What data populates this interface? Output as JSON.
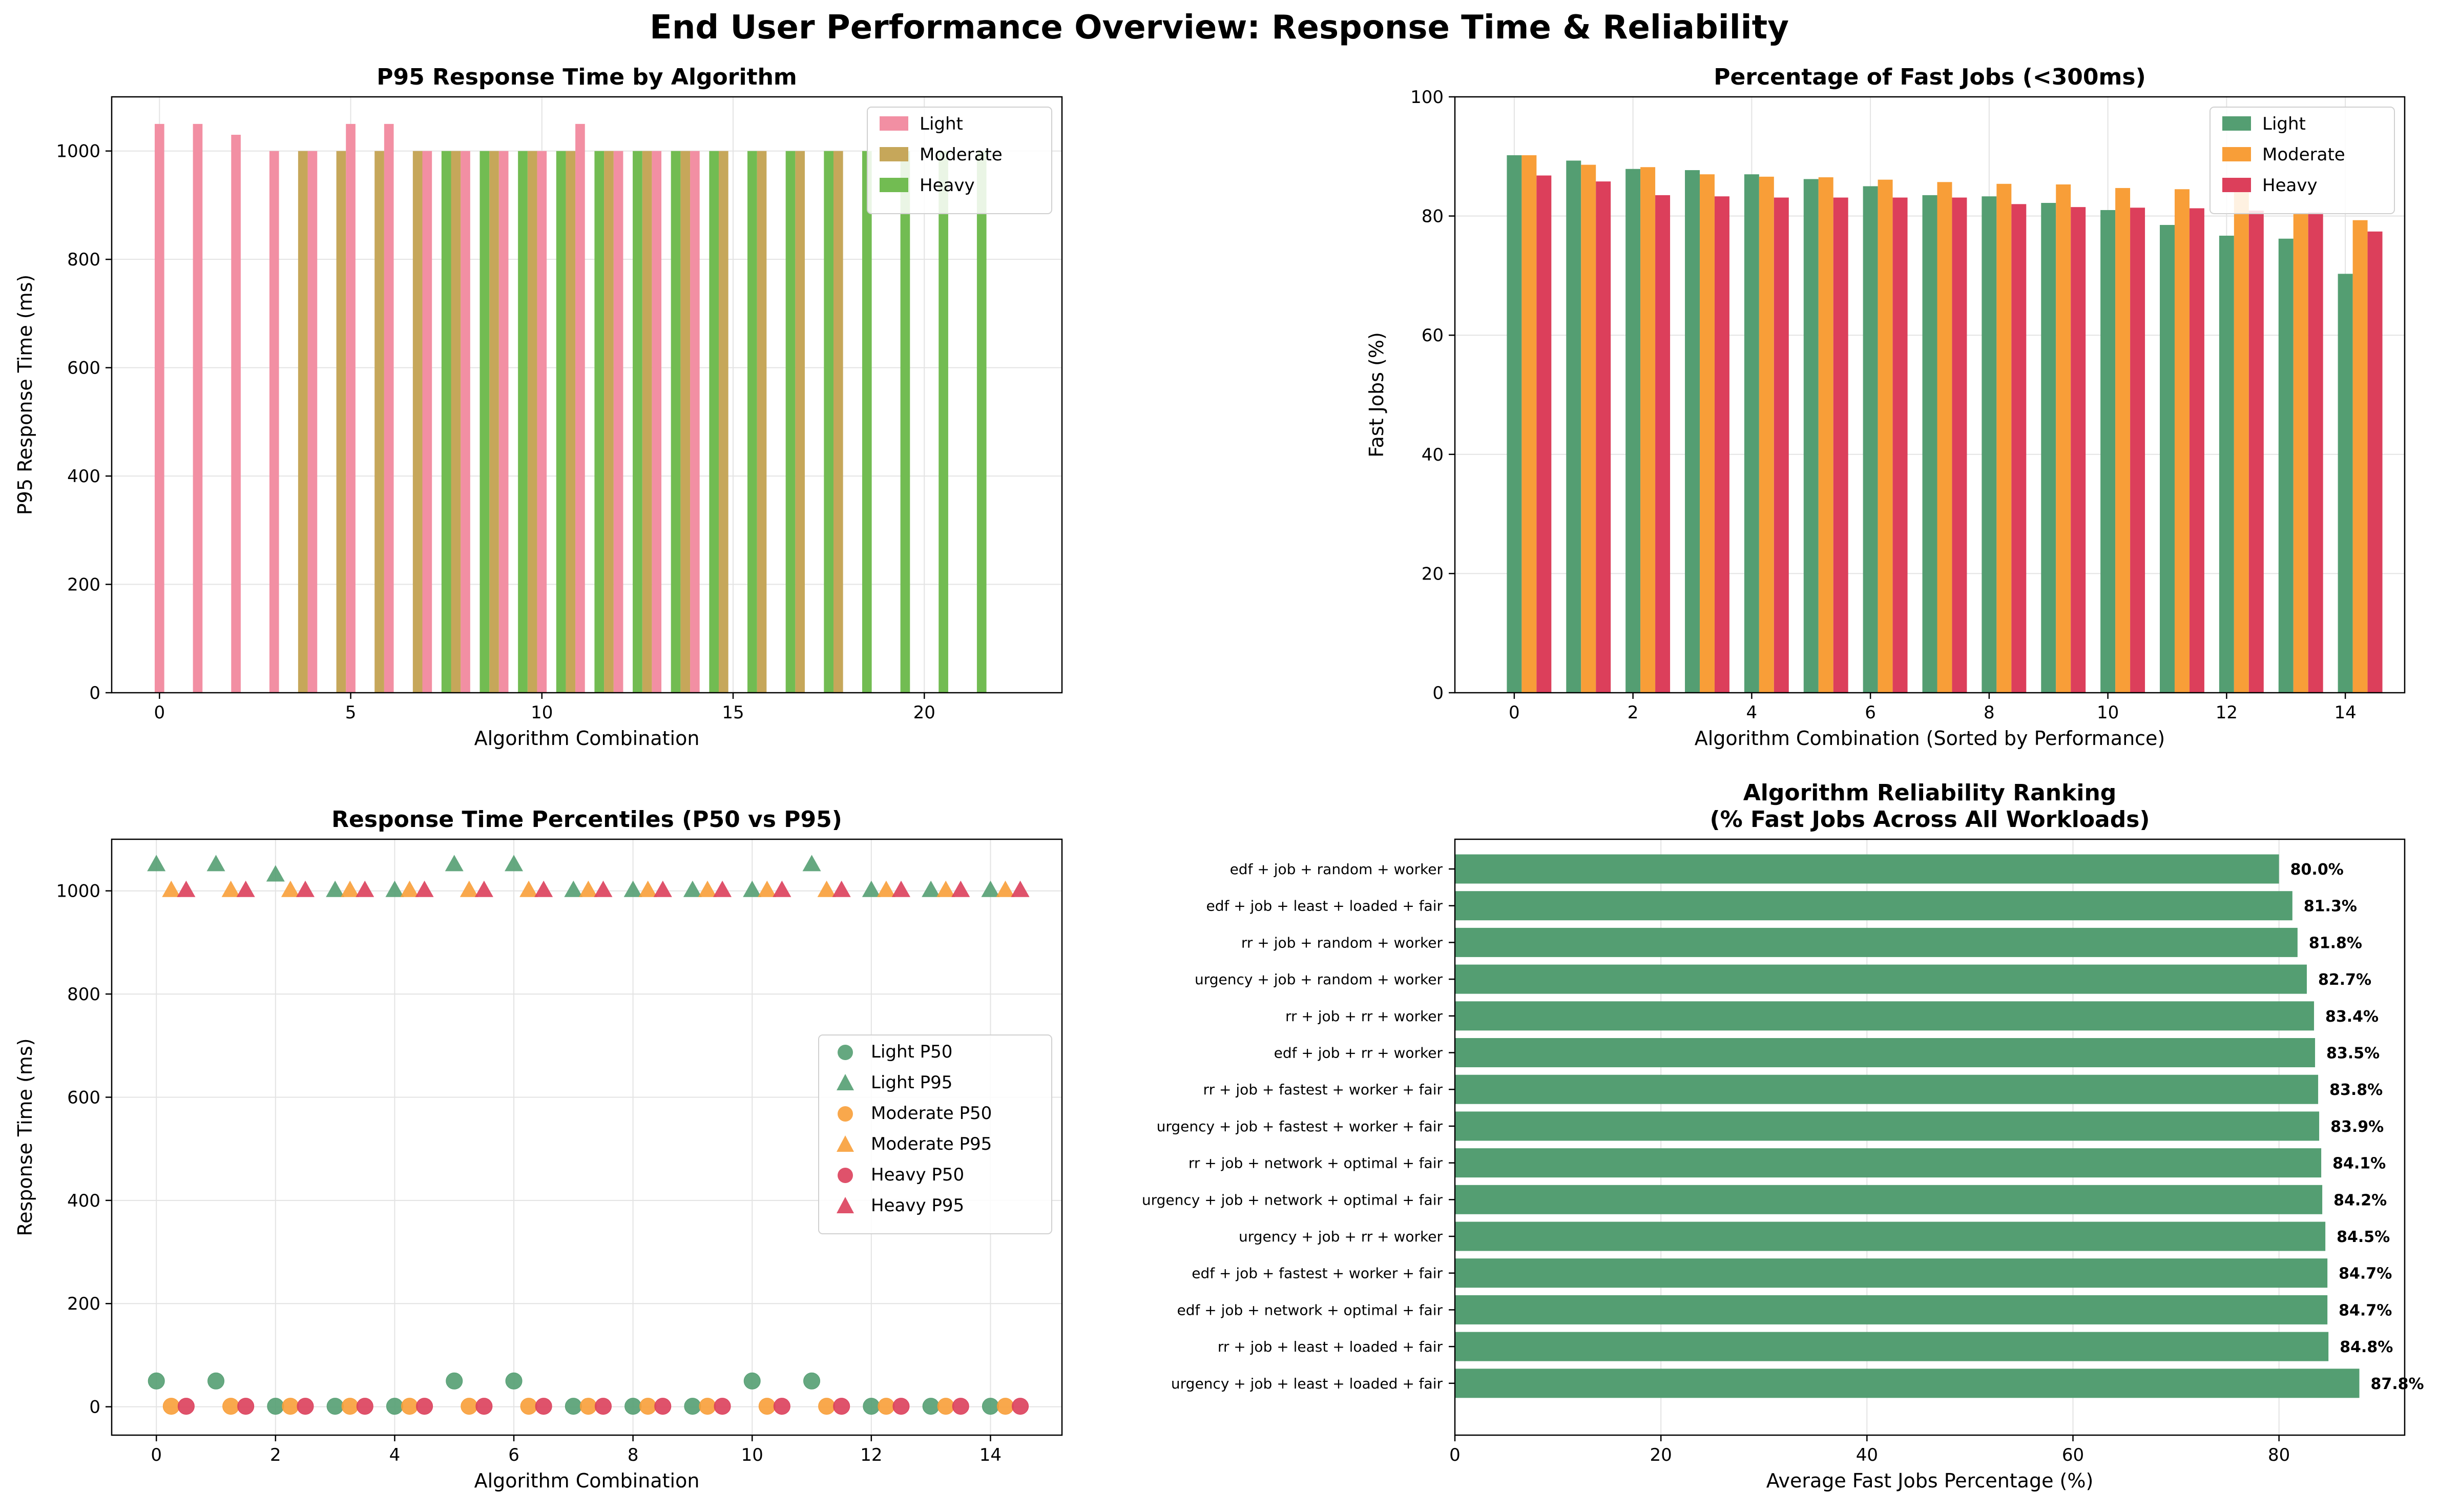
{
  "figure": {
    "title": "End User Performance Overview: Response Time & Reliability"
  },
  "chart_data": [
    {
      "type": "bar",
      "title": "P95 Response Time by Algorithm",
      "xlabel": "Algorithm Combination",
      "ylabel": "P95 Response Time (ms)",
      "xlim": [
        -1.25,
        23.6
      ],
      "ylim": [
        0,
        1100
      ],
      "xticks": [
        0,
        5,
        10,
        15,
        20
      ],
      "yticks": [
        0,
        200,
        400,
        600,
        800,
        1000
      ],
      "grid": true,
      "legend": "top-right",
      "bar_width": 0.25,
      "series": [
        {
          "name": "Light",
          "color": "#f28fa3",
          "x": [
            0,
            1,
            2,
            3,
            4,
            5,
            6,
            7,
            8,
            9,
            10,
            11,
            12,
            13,
            14
          ],
          "values": [
            1050,
            1050,
            1030,
            1000,
            1000,
            1050,
            1050,
            1000,
            1000,
            1000,
            1000,
            1050,
            1000,
            1000,
            1000
          ]
        },
        {
          "name": "Moderate",
          "color": "#c6a75a",
          "x": [
            3.75,
            4.75,
            5.75,
            6.75,
            7.75,
            8.75,
            9.75,
            10.75,
            11.75,
            12.75,
            13.75,
            14.75,
            15.75,
            16.75,
            17.75
          ],
          "values": [
            1000,
            1000,
            1000,
            1000,
            1000,
            1000,
            1000,
            1000,
            1000,
            1000,
            1000,
            1000,
            1000,
            1000,
            1000
          ]
        },
        {
          "name": "Heavy",
          "color": "#72bc52",
          "x": [
            7.5,
            8.5,
            9.5,
            10.5,
            11.5,
            12.5,
            13.5,
            14.5,
            15.5,
            16.5,
            17.5,
            18.5,
            19.5,
            20.5,
            21.5
          ],
          "values": [
            1000,
            1000,
            1000,
            1000,
            1000,
            1000,
            1000,
            1000,
            1000,
            1000,
            1000,
            1000,
            1000,
            1000,
            1000
          ]
        }
      ]
    },
    {
      "type": "bar",
      "title": "Percentage of Fast Jobs (<300ms)",
      "xlabel": "Algorithm Combination (Sorted by Performance)",
      "ylabel": "Fast Jobs (%)",
      "xlim": [
        -1.0,
        15.0
      ],
      "ylim": [
        0,
        100
      ],
      "xticks": [
        0,
        2,
        4,
        6,
        8,
        10,
        12,
        14
      ],
      "yticks": [
        0,
        20,
        40,
        60,
        80,
        100
      ],
      "grid": true,
      "legend": "top-right",
      "categories": [
        0,
        1,
        2,
        3,
        4,
        5,
        6,
        7,
        8,
        9,
        10,
        11,
        12,
        13,
        14
      ],
      "series": [
        {
          "name": "Light",
          "color": "#549e72",
          "values": [
            90.2,
            89.3,
            87.9,
            87.7,
            87.0,
            86.2,
            85.0,
            83.5,
            83.3,
            82.2,
            81.0,
            78.5,
            76.7,
            76.2,
            70.3
          ]
        },
        {
          "name": "Moderate",
          "color": "#f89e38",
          "values": [
            90.2,
            88.6,
            88.2,
            87.0,
            86.6,
            86.5,
            86.1,
            85.7,
            85.4,
            85.3,
            84.7,
            84.5,
            84.0,
            80.5,
            79.3
          ]
        },
        {
          "name": "Heavy",
          "color": "#dc3f5b",
          "values": [
            86.8,
            85.8,
            83.5,
            83.3,
            83.1,
            83.1,
            83.1,
            83.1,
            82.0,
            81.5,
            81.4,
            81.3,
            80.9,
            80.6,
            77.4
          ]
        }
      ]
    },
    {
      "type": "scatter",
      "title": "Response Time Percentiles (P50 vs P95)",
      "xlabel": "Algorithm Combination",
      "ylabel": "Response Time (ms)",
      "xlim": [
        -0.75,
        15.2
      ],
      "ylim": [
        -55,
        1100
      ],
      "xticks": [
        0,
        2,
        4,
        6,
        8,
        10,
        12,
        14
      ],
      "yticks": [
        0,
        200,
        400,
        600,
        800,
        1000
      ],
      "grid": true,
      "legend": "center-right",
      "x": [
        0,
        1,
        2,
        3,
        4,
        5,
        6,
        7,
        8,
        9,
        10,
        11,
        12,
        13,
        14
      ],
      "series": [
        {
          "name": "Light P50",
          "color": "#549e72",
          "marker": "circle",
          "x_offset": 0,
          "values": [
            50,
            50,
            1,
            1,
            1,
            50,
            50,
            1,
            1,
            1,
            50,
            50,
            1,
            1,
            1
          ]
        },
        {
          "name": "Light P95",
          "color": "#549e72",
          "marker": "triangle",
          "x_offset": 0,
          "values": [
            1050,
            1050,
            1030,
            1000,
            1000,
            1050,
            1050,
            1000,
            1000,
            1000,
            1000,
            1050,
            1000,
            1000,
            1000
          ]
        },
        {
          "name": "Moderate P50",
          "color": "#f89e38",
          "marker": "circle",
          "x_offset": 0.25,
          "values": [
            1,
            1,
            1,
            1,
            1,
            1,
            1,
            1,
            1,
            1,
            1,
            1,
            1,
            1,
            1
          ]
        },
        {
          "name": "Moderate P95",
          "color": "#f89e38",
          "marker": "triangle",
          "x_offset": 0.25,
          "values": [
            1000,
            1000,
            1000,
            1000,
            1000,
            1000,
            1000,
            1000,
            1000,
            1000,
            1000,
            1000,
            1000,
            1000,
            1000
          ]
        },
        {
          "name": "Heavy P50",
          "color": "#dc3f5b",
          "marker": "circle",
          "x_offset": 0.5,
          "values": [
            1,
            1,
            1,
            1,
            1,
            1,
            1,
            1,
            1,
            1,
            1,
            1,
            1,
            1,
            1
          ]
        },
        {
          "name": "Heavy P95",
          "color": "#dc3f5b",
          "marker": "triangle",
          "x_offset": 0.5,
          "values": [
            1000,
            1000,
            1000,
            1000,
            1000,
            1000,
            1000,
            1000,
            1000,
            1000,
            1000,
            1000,
            1000,
            1000,
            1000
          ]
        }
      ]
    },
    {
      "type": "bar",
      "orientation": "horizontal",
      "title": "Algorithm Reliability Ranking\n(% Fast Jobs Across All Workloads)",
      "xlabel": "Average Fast Jobs Percentage (%)",
      "ylabel": "",
      "xlim": [
        0,
        92.2
      ],
      "xticks": [
        0,
        20,
        40,
        60,
        80
      ],
      "grid": true,
      "color": "#549e72",
      "categories": [
        "edf + job + random + worker",
        "edf + job + least + loaded + fair",
        "rr + job + random + worker",
        "urgency + job + random + worker",
        "rr + job + rr + worker",
        "edf + job + rr + worker",
        "rr + job + fastest + worker + fair",
        "urgency + job + fastest + worker + fair",
        "rr + job + network + optimal + fair",
        "urgency + job + network + optimal + fair",
        "urgency + job + rr + worker",
        "edf + job + fastest + worker + fair",
        "edf + job + network + optimal + fair",
        "rr + job + least + loaded + fair",
        "urgency + job + least + loaded + fair"
      ],
      "values": [
        80.0,
        81.3,
        81.8,
        82.7,
        83.4,
        83.5,
        83.8,
        83.9,
        84.1,
        84.2,
        84.5,
        84.7,
        84.7,
        84.8,
        87.8
      ],
      "data_labels": [
        "80.0%",
        "81.3%",
        "81.8%",
        "82.7%",
        "83.4%",
        "83.5%",
        "83.8%",
        "83.9%",
        "84.1%",
        "84.2%",
        "84.5%",
        "84.7%",
        "84.7%",
        "84.8%",
        "87.8%"
      ]
    }
  ]
}
